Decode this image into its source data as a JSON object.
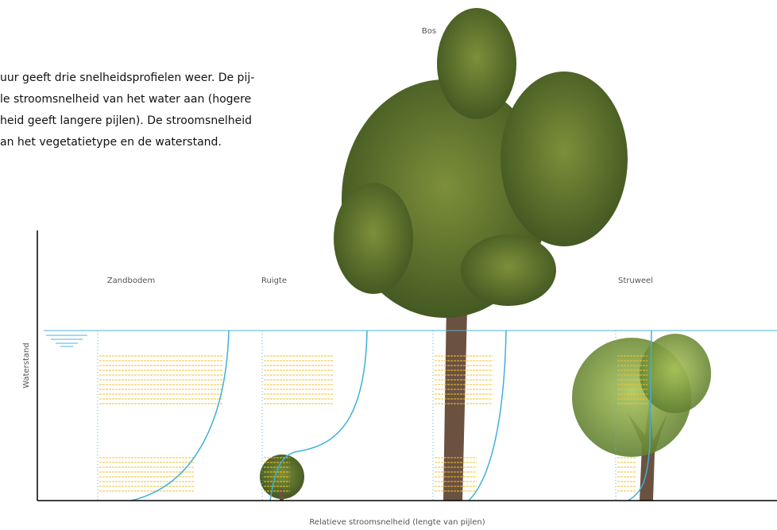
{
  "caption": [
    "uur geeft drie snelheidsprofielen weer. De pij-",
    "le stroomsnelheid van het water aan (hogere",
    "heid geeft langere pijlen). De stroomsnelheid",
    "an het vegetatietype en de waterstand."
  ],
  "labels": {
    "bos": "Bos",
    "zandbodem": "Zandbodem",
    "ruigte": "Ruigte",
    "struweel": "Struweel"
  },
  "y_axis_label": "Waterstand",
  "x_axis_label": "Relatieve stroomsnelheid (lengte van pijlen)"
}
